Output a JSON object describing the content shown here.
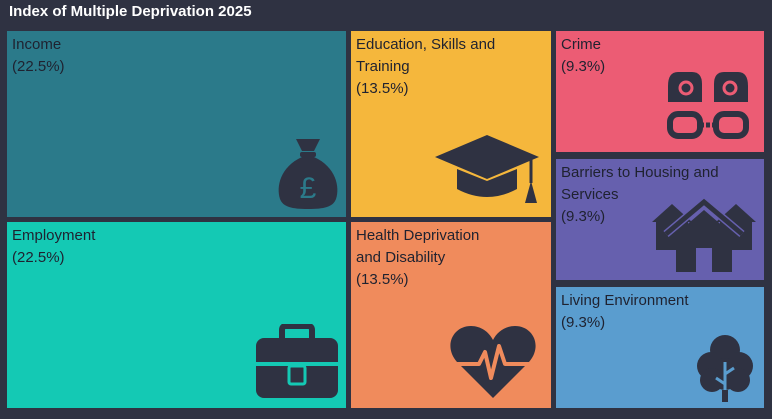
{
  "title": "Index of Multiple Deprivation 2025",
  "tiles": [
    {
      "name": "Income",
      "pct": "(22.5%)",
      "weight": 22.5,
      "color": "#2b7a8a",
      "icon": "money-bag-pound-icon"
    },
    {
      "name": "Employment",
      "pct": "(22.5%)",
      "weight": 22.5,
      "color": "#14c9b4",
      "icon": "briefcase-icon"
    },
    {
      "name": "Education, Skills and Training",
      "pct": "(13.5%)",
      "weight": 13.5,
      "color": "#f5b73c",
      "icon": "graduation-cap-icon"
    },
    {
      "name": "Health Deprivation and Disability",
      "pct": "(13.5%)",
      "weight": 13.5,
      "color": "#f08b5c",
      "icon": "heart-pulse-icon"
    },
    {
      "name": "Crime",
      "pct": "(9.3%)",
      "weight": 9.3,
      "color": "#ec5c74",
      "icon": "handcuffs-icon"
    },
    {
      "name": "Barriers to Housing and Services",
      "pct": "(9.3%)",
      "weight": 9.3,
      "color": "#6660ae",
      "icon": "houses-icon"
    },
    {
      "name": "Living Environment",
      "pct": "(9.3%)",
      "weight": 9.3,
      "color": "#5a9dcf",
      "icon": "tree-icon"
    }
  ]
}
